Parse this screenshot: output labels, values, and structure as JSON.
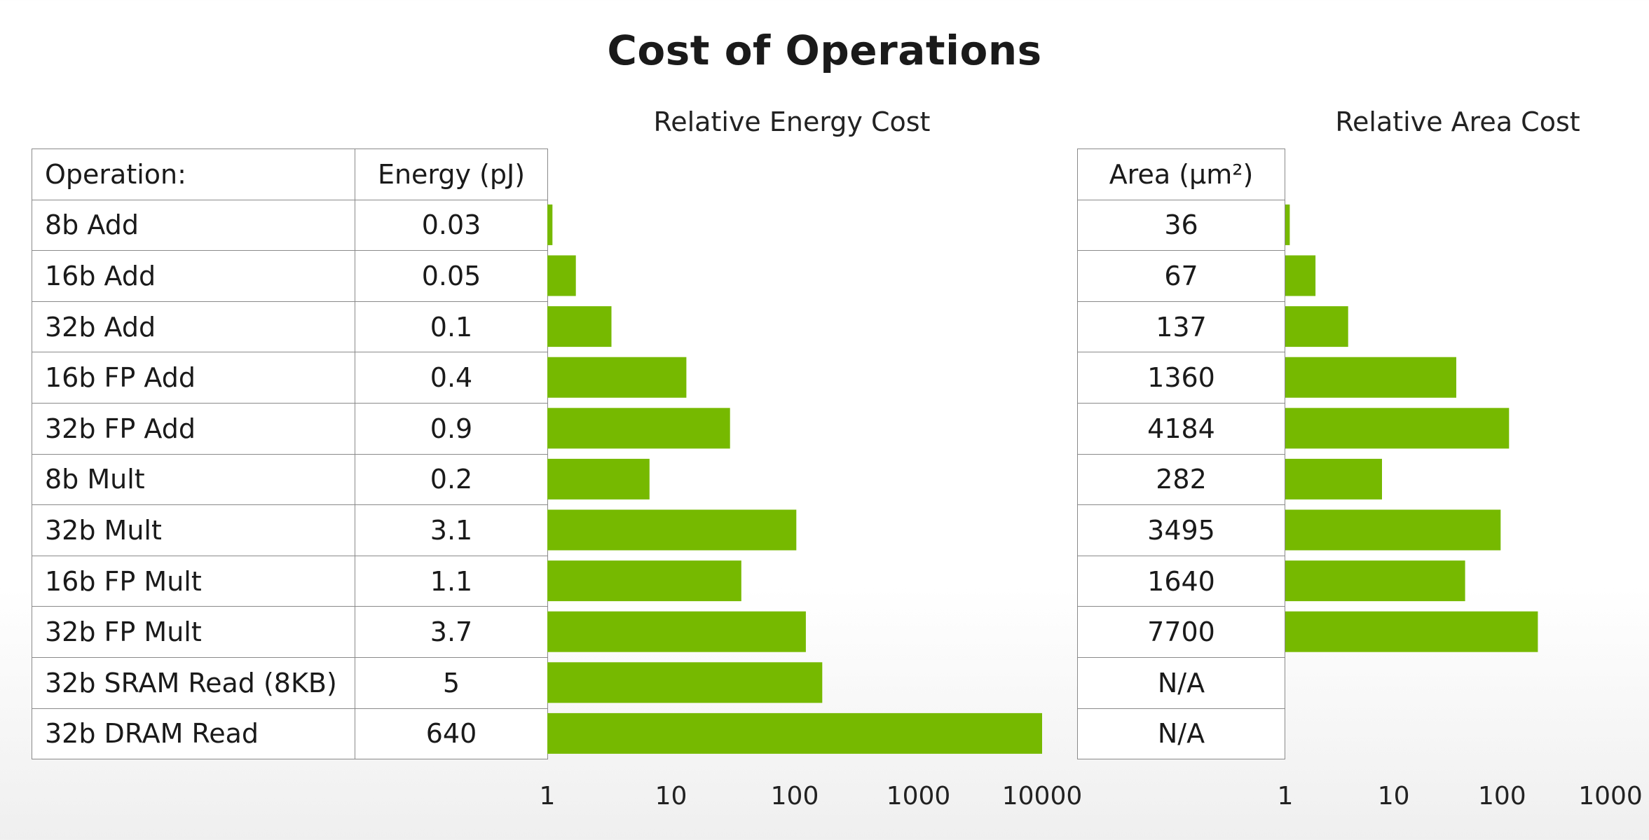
{
  "title": "Cost of Operations",
  "table": {
    "headers": [
      "Operation:",
      "Energy (pJ)",
      "Area (µm²)"
    ]
  },
  "chart_data": [
    {
      "type": "bar",
      "orientation": "horizontal",
      "title": "Relative Energy Cost",
      "x_scale": "log",
      "xlim": [
        1,
        10000
      ],
      "x_ticks": [
        "1",
        "10",
        "100",
        "1000",
        "10000"
      ],
      "categories": [
        "8b Add",
        "16b Add",
        "32b Add",
        "16b FP Add",
        "32b FP Add",
        "8b Mult",
        "32b Mult",
        "16b FP Mult",
        "32b FP Mult",
        "32b SRAM Read (8KB)",
        "32b DRAM Read"
      ],
      "value_labels": [
        "0.03",
        "0.05",
        "0.1",
        "0.4",
        "0.9",
        "0.2",
        "3.1",
        "1.1",
        "3.7",
        "5",
        "640"
      ],
      "values": [
        1.1,
        1.7,
        3.3,
        13.3,
        30,
        6.7,
        103,
        37,
        123,
        167,
        10000
      ],
      "color": "#76b900"
    },
    {
      "type": "bar",
      "orientation": "horizontal",
      "title": "Relative Area Cost",
      "x_scale": "log",
      "xlim": [
        1,
        1000
      ],
      "x_ticks": [
        "1",
        "10",
        "100",
        "1000"
      ],
      "categories": [
        "8b Add",
        "16b Add",
        "32b Add",
        "16b FP Add",
        "32b FP Add",
        "8b Mult",
        "32b Mult",
        "16b FP Mult",
        "32b FP Mult",
        "32b SRAM Read (8KB)",
        "32b DRAM Read"
      ],
      "value_labels": [
        "36",
        "67",
        "137",
        "1360",
        "4184",
        "282",
        "3495",
        "1640",
        "7700",
        "N/A",
        "N/A"
      ],
      "values": [
        1.1,
        1.9,
        3.8,
        37.8,
        116,
        7.8,
        97,
        45.6,
        214,
        null,
        null
      ],
      "color": "#76b900"
    }
  ]
}
